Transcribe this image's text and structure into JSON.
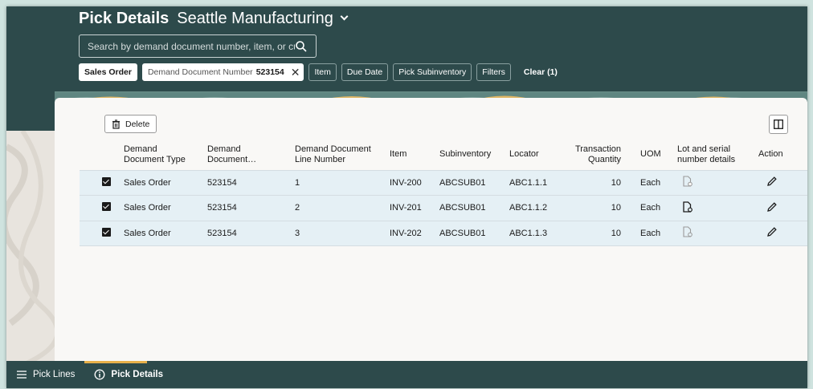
{
  "header": {
    "title": "Pick Details",
    "organization": "Seattle Manufacturing"
  },
  "search": {
    "placeholder": "Search by demand document number, item, or customer"
  },
  "filters": {
    "sales_order": "Sales Order",
    "active_label": "Demand Document Number",
    "active_value": "523154",
    "item": "Item",
    "due_date": "Due Date",
    "pick_subinventory": "Pick Subinventory",
    "filters": "Filters",
    "clear": "Clear (1)"
  },
  "toolbar": {
    "delete_label": "Delete"
  },
  "table": {
    "headers": {
      "doc_type": [
        "Demand",
        "Document Type"
      ],
      "doc_number": [
        "Demand",
        "Document…"
      ],
      "line_number": [
        "Demand Document",
        "Line Number"
      ],
      "item": "Item",
      "subinventory": "Subinventory",
      "locator": "Locator",
      "quantity": [
        "Transaction",
        "Quantity"
      ],
      "uom": "UOM",
      "lot_serial": [
        "Lot and serial",
        "number details"
      ],
      "action": "Action"
    },
    "rows": [
      {
        "doc_type": "Sales Order",
        "doc_number": "523154",
        "line": "1",
        "item": "INV-200",
        "subinventory": "ABCSUB01",
        "locator": "ABC1.1.1",
        "quantity": "10",
        "uom": "Each"
      },
      {
        "doc_type": "Sales Order",
        "doc_number": "523154",
        "line": "2",
        "item": "INV-201",
        "subinventory": "ABCSUB01",
        "locator": "ABC1.1.2",
        "quantity": "10",
        "uom": "Each"
      },
      {
        "doc_type": "Sales Order",
        "doc_number": "523154",
        "line": "3",
        "item": "INV-202",
        "subinventory": "ABCSUB01",
        "locator": "ABC1.1.3",
        "quantity": "10",
        "uom": "Each"
      }
    ]
  },
  "bottom_nav": {
    "pick_lines": "Pick Lines",
    "pick_details": "Pick Details"
  },
  "colors": {
    "header_bg": "#2d4a4b",
    "row_selected": "#e5f0f5",
    "accent": "#e8b04a"
  }
}
